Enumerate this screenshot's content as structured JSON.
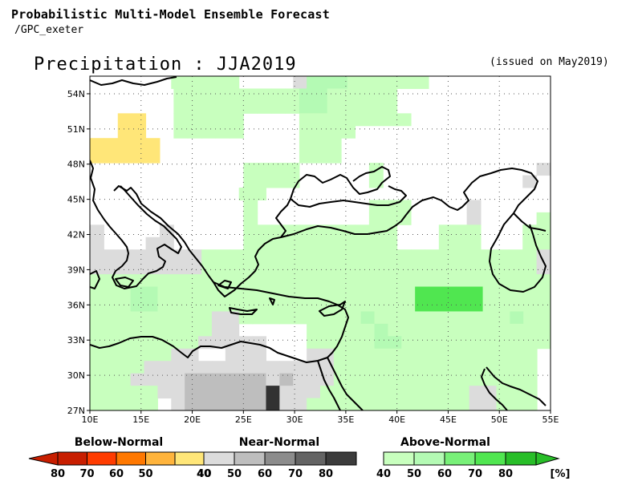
{
  "header": {
    "title": "Probabilistic Multi-Model Ensemble Forecast",
    "source": "/GPC_exeter",
    "map_title": "Precipitation : JJA2019",
    "issued": "(issued on May2019)"
  },
  "axes": {
    "lon_labels": [
      "10E",
      "15E",
      "20E",
      "25E",
      "30E",
      "35E",
      "40E",
      "45E",
      "50E",
      "55E"
    ],
    "lat_labels": [
      "54N",
      "51N",
      "48N",
      "45N",
      "42N",
      "39N",
      "36N",
      "33N",
      "30N",
      "27N"
    ]
  },
  "legend": {
    "below": {
      "label": "Below-Normal",
      "ticks": [
        "80",
        "70",
        "60",
        "50",
        "40"
      ],
      "colors": [
        "#c81e00",
        "#ff3c00",
        "#ff7800",
        "#ffb43c",
        "#ffe678"
      ]
    },
    "near": {
      "label": "Near-Normal",
      "ticks": [
        "40",
        "50",
        "60",
        "70",
        "80"
      ],
      "colors": [
        "#dcdcdc",
        "#bebebe",
        "#8c8c8c",
        "#646464",
        "#3c3c3c"
      ]
    },
    "above": {
      "label": "Above-Normal",
      "ticks": [
        "40",
        "50",
        "60",
        "70",
        "80"
      ],
      "colors": [
        "#c8ffbe",
        "#b4fab4",
        "#78f078",
        "#50e650",
        "#28be28"
      ],
      "unit": "[%]"
    }
  },
  "map_data": {
    "region": {
      "lon_min": 10,
      "lon_max": 55,
      "lat_min": 27,
      "lat_max": 55.5
    },
    "cell_deg": 2.5,
    "colors": {
      "Y": "#ffe678",
      "g": "#dcdcdc",
      "G": "#bebebe",
      "K": "#323232",
      "l": "#c8ffbe",
      "m": "#b4fab4",
      "d": "#50e650",
      "e": "#50e650"
    },
    "rows_top_to_bottom": [
      "......lllll....gmmmllllll.........",
      "......lllllllllmmlllll...........",
      "......lllllllllmmlllll...........",
      "..YY..lllll....llllllll..........",
      "..YY..lllll....llll..............",
      "YYYYY..........lll...............",
      "YYYYY..........lll...............",
      "...........llll.....l...........g",
      "...........llll.....l..........g.",
      "...........ll.....................",
      "...........l........lll....g.....",
      "...........l........lll....g....l",
      "g....g.....lllllllllll...lll...ll",
      "g...gg.....lllllllllll...lll...ll",
      "ggggggggllllllllllllllllllllllllg",
      "ggggggggllllllllllllllllllllllllg",
      "llllllllllllllllllllllllllllllllll",
      "lllmmllllllllllllllllllldddddlllll",
      "lllmmllllllllllllllllllldddddlllll",
      "lllllllllgglllllllllmllllllllllmll",
      "lllllllllgg.....lllllmllllllllllll",
      "llllllllggggg...lllllmmlllllllllll",
      "llllllgg..ggg...gglllllllllllllll.",
      "llllgggggggggggggglllllllllllllll.",
      "lllggggGGGGGGgGggglllllllllllllll.",
      "lllllggGGGGGGKggglllllllllllgglll.",
      "lllll.gGGGGGGKggllllllllllllgglll."
    ]
  }
}
